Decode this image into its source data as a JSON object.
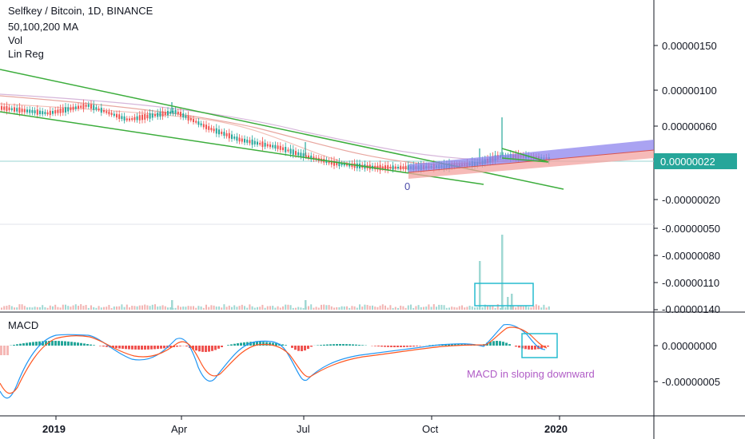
{
  "header": {
    "title": "Selfkey / Bitcoin, 1D, BINANCE",
    "indicators": [
      "50,100,200 MA",
      "Vol",
      "Lin Reg"
    ]
  },
  "macd": {
    "label": "MACD",
    "annotation": "MACD in sloping downward"
  },
  "price_marker": {
    "zero_label": "0",
    "last_price_tag": "0.00000022"
  },
  "colors": {
    "up": "#26a69a",
    "down": "#ef5350",
    "trendline": "#3cad3c",
    "box": "#26bccf",
    "macd_line": "#2196f3",
    "signal_line": "#ff5722",
    "channel_upper": "#7b68ee",
    "channel_lower": "#f4a7a7",
    "annotation": "#b05cc6",
    "price_tag": "#26a69a"
  },
  "chart_data": {
    "type": "candlestick",
    "time_axis": [
      "2019",
      "Apr",
      "Jul",
      "Oct",
      "2020"
    ],
    "price_axis_ticks": [
      "0.00000150",
      "0.00000100",
      "0.00000060",
      "0.00000022",
      "-0.00000020",
      "-0.00000050",
      "-0.00000080",
      "-0.00000110",
      "-0.00000140"
    ],
    "macd_axis_ticks": [
      "0.00000000",
      "-0.00000005"
    ]
  }
}
